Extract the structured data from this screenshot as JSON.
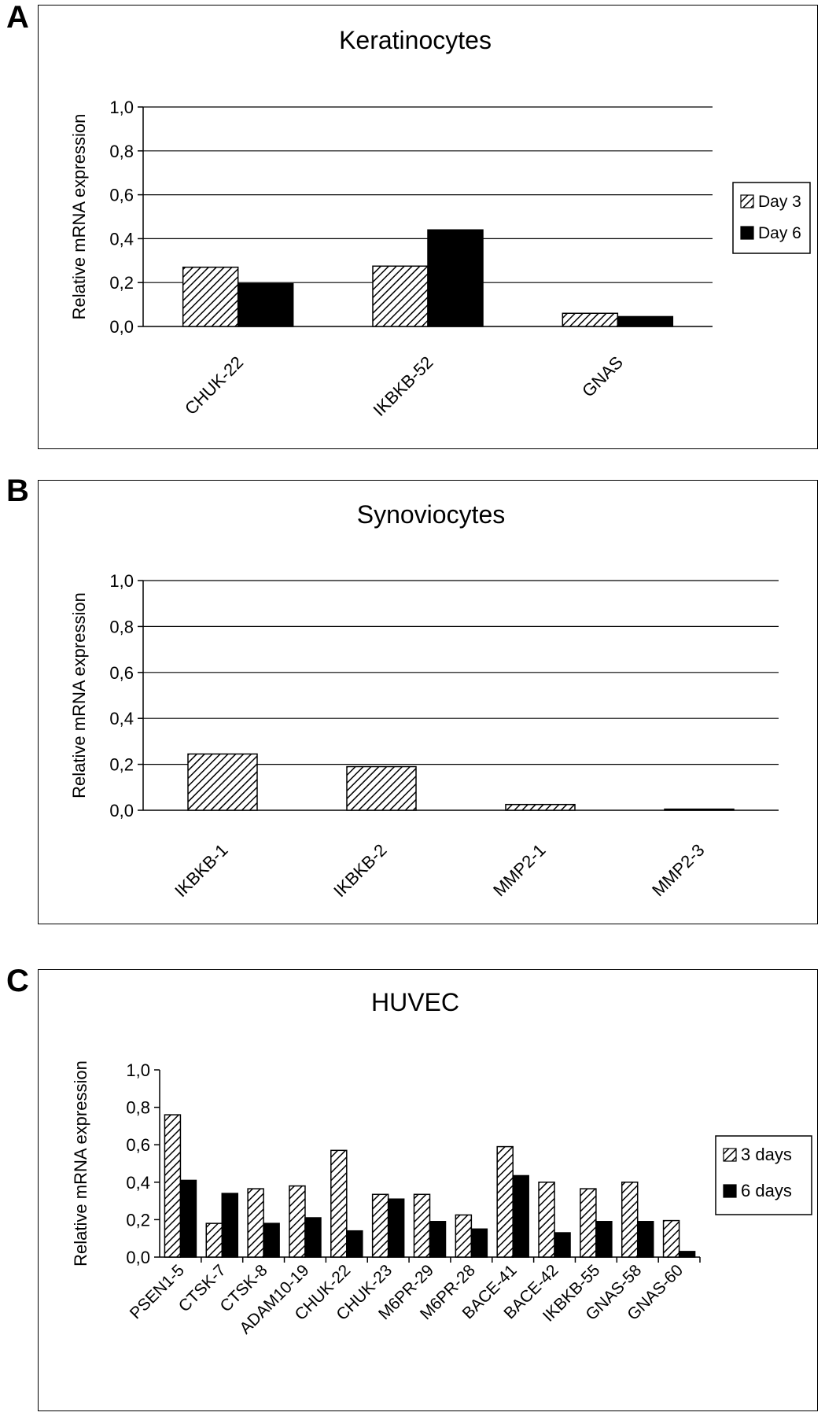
{
  "panels": [
    {
      "letter": "A"
    },
    {
      "letter": "B"
    },
    {
      "letter": "C"
    }
  ],
  "chart_data": [
    {
      "type": "bar",
      "title": "Keratinocytes",
      "ylabel": "Relative mRNA expression",
      "xlabel": "",
      "ylim": [
        0,
        1.0
      ],
      "yticks": [
        "0,0",
        "0,2",
        "0,4",
        "0,6",
        "0,8",
        "1,0"
      ],
      "grid": true,
      "legend": "right",
      "categories": [
        "CHUK-22",
        "IKBKB-52",
        "GNAS"
      ],
      "series": [
        {
          "name": "Day 3",
          "pattern": "hatched",
          "values": [
            0.27,
            0.275,
            0.06
          ]
        },
        {
          "name": "Day 6",
          "pattern": "solid",
          "values": [
            0.195,
            0.44,
            0.045
          ]
        }
      ]
    },
    {
      "type": "bar",
      "title": "Synoviocytes",
      "ylabel": "Relative mRNA expression",
      "xlabel": "",
      "ylim": [
        0,
        1.0
      ],
      "yticks": [
        "0,0",
        "0,2",
        "0,4",
        "0,6",
        "0,8",
        "1,0"
      ],
      "grid": true,
      "legend": "none",
      "categories": [
        "IKBKB-1",
        "IKBKB-2",
        "MMP2-1",
        "MMP2-3"
      ],
      "series": [
        {
          "pattern": "hatched",
          "values": [
            0.245,
            0.19,
            0.025,
            0.005
          ]
        }
      ]
    },
    {
      "type": "bar",
      "title": "HUVEC",
      "ylabel": "Relative mRNA expression",
      "xlabel": "",
      "ylim": [
        0,
        1.0
      ],
      "yticks": [
        "0,0",
        "0,2",
        "0,4",
        "0,6",
        "0,8",
        "1,0"
      ],
      "grid": false,
      "legend": "right",
      "categories": [
        "PSEN1-5",
        "CTSK-7",
        "CTSK-8",
        "ADAM10-19",
        "CHUK-22",
        "CHUK-23",
        "M6PR-29",
        "M6PR-28",
        "BACE-41",
        "BACE-42",
        "IKBKB-55",
        "GNAS-58",
        "GNAS-60"
      ],
      "series": [
        {
          "name": "3 days",
          "pattern": "hatched",
          "values": [
            0.76,
            0.18,
            0.365,
            0.38,
            0.57,
            0.335,
            0.335,
            0.225,
            0.59,
            0.4,
            0.365,
            0.4,
            0.195
          ]
        },
        {
          "name": "6 days",
          "pattern": "solid",
          "values": [
            0.41,
            0.34,
            0.18,
            0.21,
            0.14,
            0.31,
            0.19,
            0.15,
            0.435,
            0.13,
            0.19,
            0.19,
            0.03
          ]
        }
      ]
    }
  ]
}
